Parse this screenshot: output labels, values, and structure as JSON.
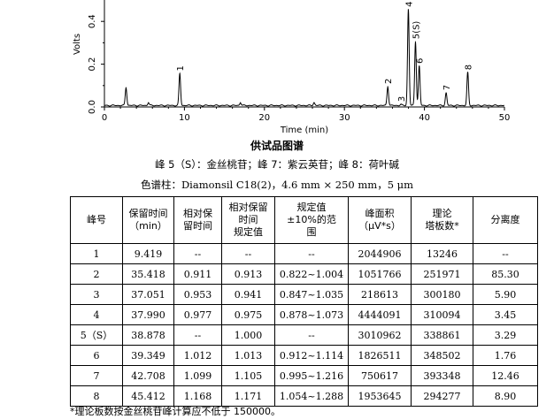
{
  "chart_data": {
    "type": "line",
    "xlabel": "Time (min)",
    "ylabel": "Volts",
    "xlim": [
      0,
      50
    ],
    "ylim": [
      0,
      0.5
    ],
    "x_ticks": [
      0,
      10,
      20,
      30,
      40,
      50
    ],
    "y_ticks": [
      "0.0",
      "0.2",
      "0.4"
    ],
    "y_tick_values": [
      0,
      0.2,
      0.4
    ],
    "peaks": [
      {
        "label": "",
        "x": 2.7,
        "y": 0.09
      },
      {
        "label": "",
        "x": 5.5,
        "y": 0.02
      },
      {
        "label": "1",
        "x": 9.42,
        "y": 0.155
      },
      {
        "label": "",
        "x": 17.0,
        "y": 0.02
      },
      {
        "label": "",
        "x": 26.2,
        "y": 0.02
      },
      {
        "label": "2",
        "x": 35.42,
        "y": 0.095
      },
      {
        "label": "3",
        "x": 37.05,
        "y": 0.012
      },
      {
        "label": "4",
        "x": 37.99,
        "y": 0.455
      },
      {
        "label": "5(S)",
        "x": 38.88,
        "y": 0.305
      },
      {
        "label": "6",
        "x": 39.35,
        "y": 0.19
      },
      {
        "label": "7",
        "x": 42.71,
        "y": 0.065
      },
      {
        "label": "8",
        "x": 45.41,
        "y": 0.16
      }
    ]
  },
  "figure": {
    "title": "供试品图谱",
    "legend": "峰 5（S）：金丝桃苷；峰 7：紫云英苷；峰 8：荷叶碱",
    "column": "色谱柱：Diamonsil C18(2)，4.6 mm × 250 mm，5 μm"
  },
  "table": {
    "headers": [
      "峰号",
      "保留时间\n（min）",
      "相对保\n留时间",
      "相对保留\n时间\n规定值",
      "规定值\n±10%的范\n围",
      "峰面积\n（μV*s）",
      "理论\n塔板数*",
      "分离度"
    ],
    "rows": [
      [
        "1",
        "9.419",
        "--",
        "--",
        "--",
        "2044906",
        "13246",
        "--"
      ],
      [
        "2",
        "35.418",
        "0.911",
        "0.913",
        "0.822~1.004",
        "1051766",
        "251971",
        "85.30"
      ],
      [
        "3",
        "37.051",
        "0.953",
        "0.941",
        "0.847~1.035",
        "218613",
        "300180",
        "5.90"
      ],
      [
        "4",
        "37.990",
        "0.977",
        "0.975",
        "0.878~1.073",
        "4444091",
        "310094",
        "3.45"
      ],
      [
        "5（S）",
        "38.878",
        "--",
        "1.000",
        "--",
        "3010962",
        "338861",
        "3.29"
      ],
      [
        "6",
        "39.349",
        "1.012",
        "1.013",
        "0.912~1.114",
        "1826511",
        "348502",
        "1.76"
      ],
      [
        "7",
        "42.708",
        "1.099",
        "1.105",
        "0.995~1.216",
        "750617",
        "393348",
        "12.46"
      ],
      [
        "8",
        "45.412",
        "1.168",
        "1.171",
        "1.054~1.288",
        "1953645",
        "294277",
        "8.90"
      ]
    ]
  },
  "footnote": "*理论板数按金丝桃苷峰计算应不低于 150000。"
}
